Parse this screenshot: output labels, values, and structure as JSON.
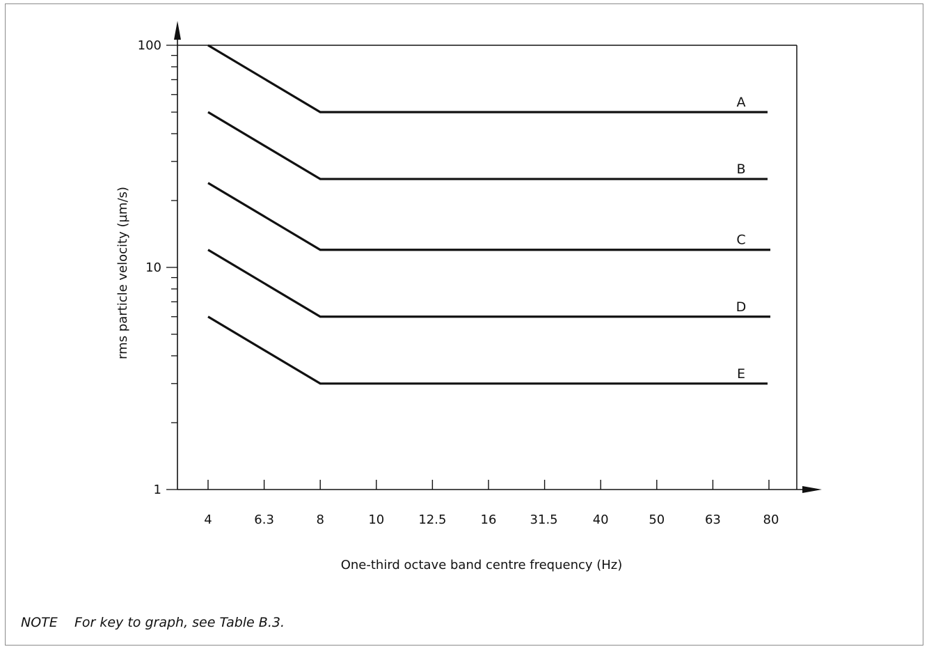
{
  "chart_data": {
    "type": "line",
    "xlabel": "One-third octave band centre frequency (Hz)",
    "ylabel": "rms particle velocity (µm/s)",
    "y_scale": "log",
    "ylim": [
      1,
      100
    ],
    "y_ticks": [
      "1",
      "10",
      "100"
    ],
    "categories": [
      "4",
      "6.3",
      "8",
      "10",
      "12.5",
      "16",
      "31.5",
      "40",
      "50",
      "63",
      "80"
    ],
    "series": [
      {
        "name": "A",
        "points": [
          [
            "4",
            100
          ],
          [
            "8",
            50
          ],
          [
            "80",
            50
          ]
        ]
      },
      {
        "name": "B",
        "points": [
          [
            "4",
            50
          ],
          [
            "8",
            25
          ],
          [
            "80",
            25
          ]
        ]
      },
      {
        "name": "C",
        "points": [
          [
            "4",
            24
          ],
          [
            "8",
            12
          ],
          [
            "80",
            12
          ]
        ]
      },
      {
        "name": "D",
        "points": [
          [
            "4",
            12
          ],
          [
            "8",
            6
          ],
          [
            "80",
            6
          ]
        ]
      },
      {
        "name": "E",
        "points": [
          [
            "4",
            6
          ],
          [
            "8",
            3
          ],
          [
            "80",
            3
          ]
        ]
      }
    ],
    "grid": false,
    "legend": "labels at right end of each line"
  },
  "note": {
    "label": "NOTE",
    "text": "For key to graph, see Table B.3."
  }
}
